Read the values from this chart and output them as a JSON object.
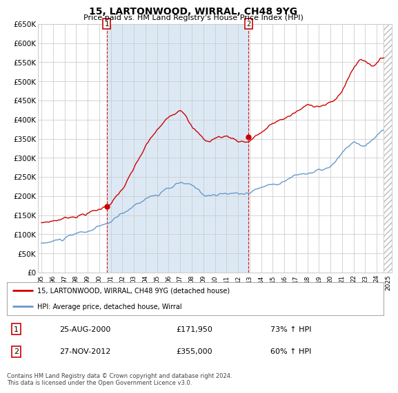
{
  "title": "15, LARTONWOOD, WIRRAL, CH48 9YG",
  "subtitle": "Price paid vs. HM Land Registry's House Price Index (HPI)",
  "ylim": [
    0,
    650000
  ],
  "yticks": [
    0,
    50000,
    100000,
    150000,
    200000,
    250000,
    300000,
    350000,
    400000,
    450000,
    500000,
    550000,
    600000,
    650000
  ],
  "ytick_labels": [
    "£0",
    "£50K",
    "£100K",
    "£150K",
    "£200K",
    "£250K",
    "£300K",
    "£350K",
    "£400K",
    "£450K",
    "£500K",
    "£550K",
    "£600K",
    "£650K"
  ],
  "red_color": "#cc0000",
  "blue_color": "#6699cc",
  "shade_color": "#dce9f5",
  "background_color": "#ffffff",
  "grid_color": "#cccccc",
  "annotation1": {
    "label": "1",
    "date": "25-AUG-2000",
    "price": 171950,
    "pct": "73% ↑ HPI"
  },
  "annotation2": {
    "label": "2",
    "date": "27-NOV-2012",
    "price": 355000,
    "pct": "60% ↑ HPI"
  },
  "legend1": "15, LARTONWOOD, WIRRAL, CH48 9YG (detached house)",
  "legend2": "HPI: Average price, detached house, Wirral",
  "footer": "Contains HM Land Registry data © Crown copyright and database right 2024.\nThis data is licensed under the Open Government Licence v3.0.",
  "sale1_x": 2000.646,
  "sale1_y": 171950,
  "sale2_x": 2012.91,
  "sale2_y": 355000,
  "xlim_left": 1994.7,
  "xlim_right": 2025.3,
  "hatch_start": 2024.58
}
